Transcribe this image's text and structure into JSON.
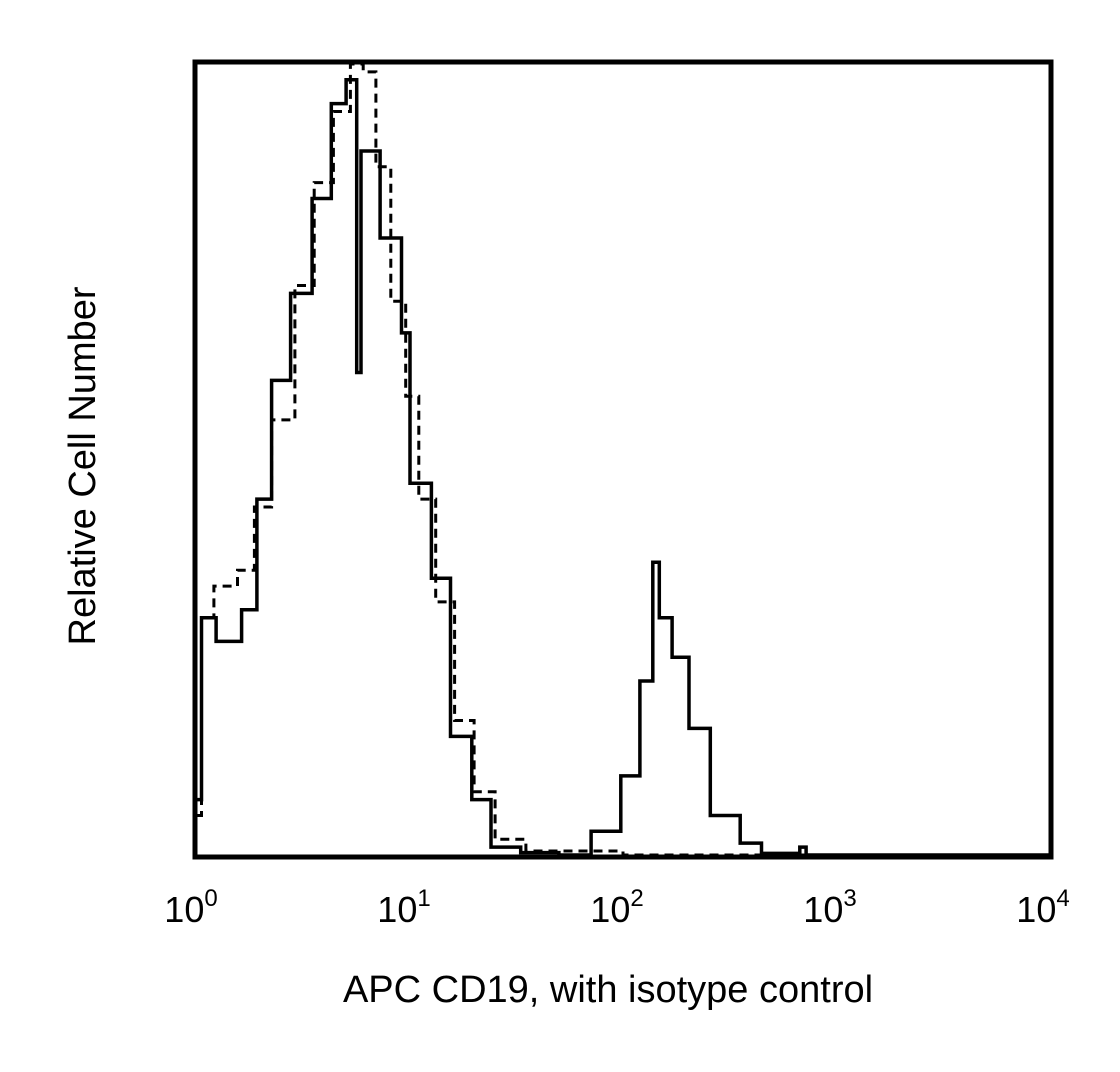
{
  "chart_data": {
    "type": "line",
    "title": "",
    "xlabel": "APC CD19, with isotype control",
    "ylabel": "Relative Cell Number",
    "x_scale": "log",
    "xlim": [
      1,
      10000
    ],
    "ylim": [
      0,
      100
    ],
    "grid": false,
    "x_ticks": [
      {
        "base": "10",
        "exp": "0"
      },
      {
        "base": "10",
        "exp": "1"
      },
      {
        "base": "10",
        "exp": "2"
      },
      {
        "base": "10",
        "exp": "3"
      },
      {
        "base": "10",
        "exp": "4"
      }
    ],
    "series": [
      {
        "style": "solid",
        "color": "#000000",
        "x": [
          1.0,
          1.05,
          1.23,
          1.62,
          1.91,
          2.24,
          2.75,
          3.47,
          4.27,
          5.01,
          5.62,
          5.89,
          7.24,
          9.12,
          10.0,
          12.6,
          15.5,
          19.5,
          24.0,
          33.1,
          50,
          70.8,
          97.7,
          120,
          138,
          148,
          170,
          204,
          257,
          355,
          447,
          676,
          724,
          1000,
          10000
        ],
        "y": [
          7,
          30,
          27,
          31,
          45,
          60,
          71,
          83,
          95,
          98,
          61,
          89,
          78,
          66,
          47,
          35,
          15,
          7,
          1,
          0.3,
          0,
          3,
          10,
          22,
          37,
          30,
          25,
          16,
          5,
          1.5,
          0.2,
          1,
          0,
          0,
          0
        ]
      },
      {
        "style": "dashed",
        "color": "#000000",
        "x": [
          1.0,
          1.05,
          1.2,
          1.55,
          1.86,
          2.24,
          2.88,
          3.55,
          4.37,
          5.25,
          6.03,
          6.92,
          8.13,
          9.55,
          11.0,
          13.2,
          16.2,
          20.0,
          25.1,
          35,
          50,
          100,
          1000,
          10000
        ],
        "y": [
          5,
          30,
          34,
          36,
          44,
          55,
          72,
          85,
          94,
          100,
          99,
          87,
          70,
          58,
          45,
          32,
          17,
          8,
          2,
          0.5,
          0.5,
          0,
          0,
          0
        ]
      }
    ]
  }
}
